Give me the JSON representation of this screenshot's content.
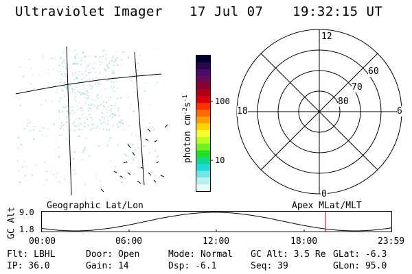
{
  "header": {
    "instrument": "Ultraviolet Imager",
    "date": "17 Jul 07",
    "time": "19:32:15 UT"
  },
  "left_panel": {
    "caption": "Geographic Lat/Lon"
  },
  "colorbar": {
    "label": "photon cm^-2 s^-1",
    "ticks": [
      "100",
      "10"
    ],
    "colors": [
      "#000030",
      "#25084a",
      "#4a0a6b",
      "#6a0a55",
      "#8a0030",
      "#b00018",
      "#d80010",
      "#ff3000",
      "#ff6a00",
      "#ffa000",
      "#ffd400",
      "#f4ff30",
      "#b8ff20",
      "#70f020",
      "#20e020",
      "#10d890",
      "#20d8d8",
      "#70e6e6",
      "#b8f0f0",
      "#e8fafa"
    ]
  },
  "polar_plot": {
    "caption": "Apex MLat/MLT",
    "mlt_labels": {
      "top": "12",
      "bottom": "0",
      "left": "18",
      "right": "6"
    },
    "lat_labels": [
      "60",
      "70",
      "80"
    ]
  },
  "altitude_plot": {
    "ylabel": "GC Alt",
    "y_ticks": [
      "9.0",
      "1.8"
    ],
    "x_ticks": [
      "00:00",
      "06:00",
      "12:00",
      "18:00",
      "23:59"
    ],
    "line_color": "#000000",
    "marker_color": "#cc0000"
  },
  "status": {
    "row1": [
      {
        "name": "Flt",
        "text": "Flt: LBHL"
      },
      {
        "name": "Door",
        "text": "Door: Open"
      },
      {
        "name": "Mode",
        "text": "Mode: Normal"
      },
      {
        "name": "GC Alt",
        "text": "GC Alt: 3.5 Re"
      },
      {
        "name": "GLat",
        "text": "GLat:   -6.3"
      }
    ],
    "row2": [
      {
        "name": "IP",
        "text": "IP: 36.0"
      },
      {
        "name": "Gain",
        "text": "Gain: 14"
      },
      {
        "name": "Dsp",
        "text": "Dsp:   -6.1"
      },
      {
        "name": "Seq",
        "text": "Seq: 39"
      },
      {
        "name": "GLon",
        "text": "GLon:   95.0"
      }
    ]
  }
}
